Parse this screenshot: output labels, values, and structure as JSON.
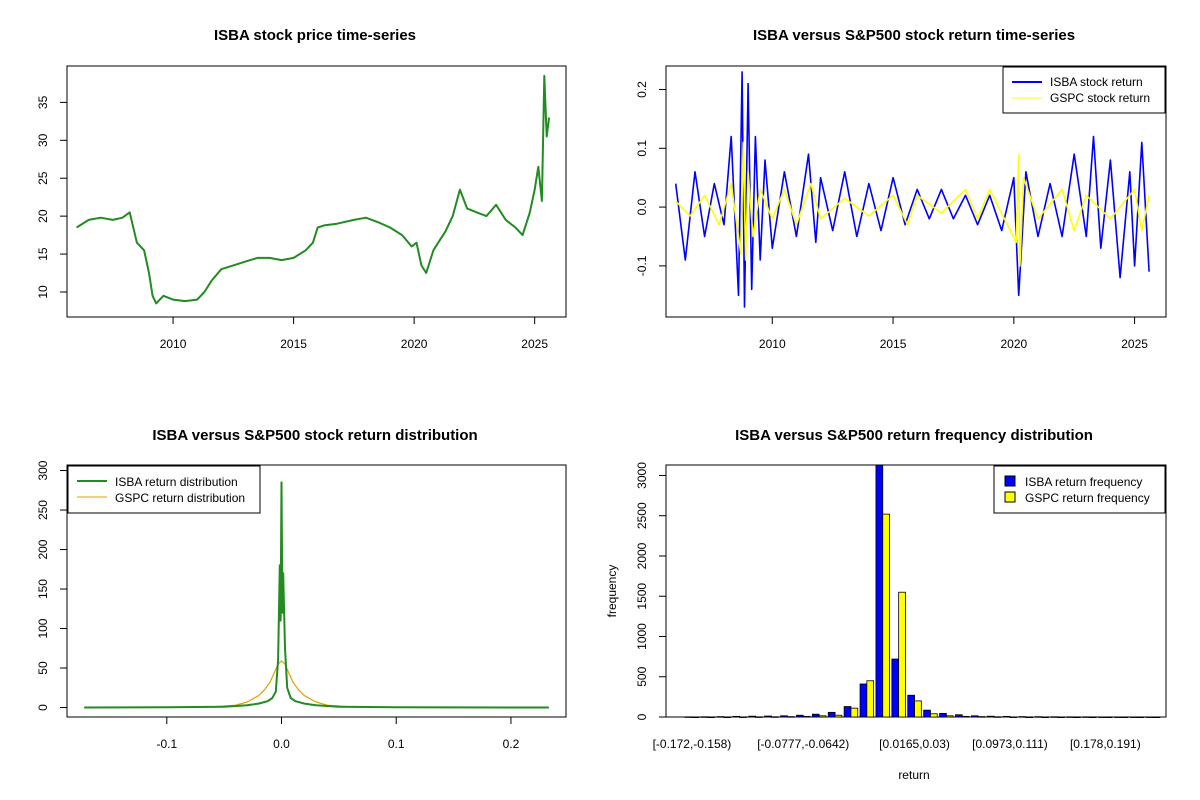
{
  "colors": {
    "isba": "#0000ff",
    "gspc": "#ffff00",
    "price": "#228b22",
    "gspc_density": "#e1a100",
    "frame": "#000000"
  },
  "chart_data": [
    {
      "id": "price",
      "type": "line",
      "title": "ISBA stock price time-series",
      "xlabel": "",
      "ylabel": "",
      "xlim": [
        2005.6,
        2026.3
      ],
      "ylim": [
        6.7,
        39.8
      ],
      "xticks": [
        "2010",
        "2015",
        "2020",
        "2025"
      ],
      "yticks": [
        "10",
        "15",
        "20",
        "25",
        "30",
        "35"
      ],
      "series": [
        {
          "name": "ISBA price",
          "x": [
            2006.0,
            2006.5,
            2007.0,
            2007.5,
            2007.9,
            2008.2,
            2008.5,
            2008.8,
            2009.0,
            2009.15,
            2009.3,
            2009.6,
            2010.0,
            2010.5,
            2011.0,
            2011.3,
            2011.6,
            2012.0,
            2012.5,
            2013.0,
            2013.5,
            2014.0,
            2014.5,
            2015.0,
            2015.5,
            2015.8,
            2016.0,
            2016.3,
            2016.8,
            2017.5,
            2018.0,
            2018.5,
            2019.0,
            2019.5,
            2019.9,
            2020.1,
            2020.3,
            2020.5,
            2020.8,
            2021.0,
            2021.3,
            2021.6,
            2021.9,
            2022.2,
            2022.6,
            2023.0,
            2023.4,
            2023.8,
            2024.2,
            2024.5,
            2024.8,
            2025.0,
            2025.15,
            2025.3,
            2025.4,
            2025.5,
            2025.6
          ],
          "y": [
            18.5,
            19.5,
            19.8,
            19.5,
            19.8,
            20.5,
            16.5,
            15.5,
            12.5,
            9.5,
            8.5,
            9.5,
            9.0,
            8.8,
            9.0,
            10.0,
            11.5,
            13.0,
            13.5,
            14.0,
            14.5,
            14.5,
            14.2,
            14.5,
            15.5,
            16.5,
            18.5,
            18.8,
            19.0,
            19.5,
            19.8,
            19.2,
            18.5,
            17.5,
            16.0,
            16.5,
            13.5,
            12.5,
            15.5,
            16.5,
            18.0,
            20.0,
            23.5,
            21.0,
            20.5,
            20.0,
            21.5,
            19.5,
            18.5,
            17.5,
            20.5,
            23.5,
            26.5,
            22.0,
            38.5,
            30.5,
            33.0
          ]
        }
      ]
    },
    {
      "id": "returns",
      "type": "line",
      "title": "ISBA versus S&P500 stock return time-series",
      "xlabel": "",
      "ylabel": "",
      "xlim": [
        2005.6,
        2026.3
      ],
      "ylim": [
        -0.187,
        0.24
      ],
      "xticks": [
        "2010",
        "2015",
        "2020",
        "2025"
      ],
      "yticks": [
        "-0.1",
        "0.0",
        "0.1",
        "0.2"
      ],
      "legend": {
        "position": "top-right",
        "entries": [
          "ISBA stock return",
          "GSPC stock return"
        ]
      },
      "series": [
        {
          "name": "ISBA stock return",
          "x": [
            2006.0,
            2006.4,
            2006.8,
            2007.2,
            2007.6,
            2008.0,
            2008.3,
            2008.6,
            2008.75,
            2008.85,
            2009.0,
            2009.15,
            2009.3,
            2009.5,
            2009.7,
            2010.0,
            2010.5,
            2011.0,
            2011.5,
            2011.8,
            2012.0,
            2012.5,
            2013.0,
            2013.5,
            2014.0,
            2014.5,
            2015.0,
            2015.5,
            2016.0,
            2016.5,
            2017.0,
            2017.5,
            2018.0,
            2018.5,
            2019.0,
            2019.5,
            2020.0,
            2020.2,
            2020.5,
            2021.0,
            2021.5,
            2022.0,
            2022.5,
            2023.0,
            2023.3,
            2023.6,
            2024.0,
            2024.4,
            2024.8,
            2025.0,
            2025.3,
            2025.6
          ],
          "y": [
            0.04,
            -0.09,
            0.06,
            -0.05,
            0.04,
            -0.03,
            0.12,
            -0.15,
            0.23,
            -0.17,
            0.21,
            -0.14,
            0.12,
            -0.09,
            0.08,
            -0.07,
            0.06,
            -0.05,
            0.09,
            -0.06,
            0.05,
            -0.04,
            0.06,
            -0.05,
            0.04,
            -0.04,
            0.05,
            -0.03,
            0.03,
            -0.02,
            0.03,
            -0.02,
            0.02,
            -0.03,
            0.02,
            -0.04,
            0.05,
            -0.15,
            0.06,
            -0.05,
            0.04,
            -0.05,
            0.09,
            -0.05,
            0.12,
            -0.07,
            0.08,
            -0.12,
            0.06,
            -0.1,
            0.11,
            -0.11
          ]
        },
        {
          "name": "GSPC stock return",
          "x": [
            2006.0,
            2006.6,
            2007.2,
            2007.8,
            2008.3,
            2008.7,
            2008.8,
            2008.9,
            2009.0,
            2009.2,
            2009.5,
            2010.0,
            2010.5,
            2011.0,
            2011.6,
            2012.0,
            2013.0,
            2014.0,
            2015.0,
            2015.6,
            2016.0,
            2017.0,
            2018.0,
            2018.5,
            2019.0,
            2020.1,
            2020.2,
            2020.25,
            2020.4,
            2021.0,
            2022.0,
            2022.5,
            2023.0,
            2024.0,
            2025.0,
            2025.3,
            2025.6
          ],
          "y": [
            0.01,
            -0.015,
            0.02,
            -0.03,
            0.04,
            -0.08,
            0.11,
            -0.09,
            0.06,
            -0.05,
            0.03,
            -0.02,
            0.03,
            -0.03,
            0.04,
            -0.02,
            0.015,
            -0.015,
            0.02,
            -0.03,
            0.02,
            -0.01,
            0.03,
            -0.02,
            0.03,
            -0.06,
            0.09,
            -0.1,
            0.05,
            -0.02,
            0.03,
            -0.04,
            0.02,
            -0.02,
            0.03,
            -0.04,
            0.02
          ]
        }
      ]
    },
    {
      "id": "density",
      "type": "line",
      "title": "ISBA versus S&P500 stock return distribution",
      "xlabel": "",
      "ylabel": "",
      "xlim": [
        -0.187,
        0.248
      ],
      "ylim": [
        -12,
        307
      ],
      "xticks": [
        "-0.1",
        "0.0",
        "0.1",
        "0.2"
      ],
      "yticks": [
        "0",
        "50",
        "100",
        "150",
        "200",
        "250",
        "300"
      ],
      "legend": {
        "position": "top-left",
        "entries": [
          "ISBA return distribution",
          "GSPC return distribution"
        ]
      },
      "series": [
        {
          "name": "ISBA return distribution",
          "x": [
            -0.172,
            -0.1,
            -0.05,
            -0.03,
            -0.02,
            -0.012,
            -0.008,
            -0.005,
            -0.003,
            -0.0015,
            -0.0008,
            0.0,
            0.0008,
            0.0015,
            0.003,
            0.005,
            0.008,
            0.012,
            0.02,
            0.03,
            0.05,
            0.1,
            0.233
          ],
          "y": [
            0,
            0.3,
            1,
            3,
            5,
            8,
            12,
            20,
            60,
            180,
            110,
            285,
            120,
            170,
            75,
            25,
            12,
            8,
            5,
            3,
            1,
            0.3,
            0
          ]
        },
        {
          "name": "GSPC return distribution",
          "x": [
            -0.172,
            -0.1,
            -0.06,
            -0.04,
            -0.03,
            -0.02,
            -0.015,
            -0.01,
            -0.006,
            -0.003,
            0.0,
            0.003,
            0.006,
            0.01,
            0.015,
            0.02,
            0.03,
            0.04,
            0.06,
            0.1,
            0.233
          ],
          "y": [
            0,
            0.2,
            1,
            3,
            7,
            15,
            22,
            32,
            45,
            55,
            59,
            55,
            45,
            32,
            22,
            15,
            7,
            3,
            1,
            0.2,
            0
          ]
        }
      ]
    },
    {
      "id": "freq",
      "type": "bar",
      "title": "ISBA versus S&P500 return frequency distribution",
      "xlabel": "return",
      "ylabel": "frequency",
      "ylim": [
        0,
        3130
      ],
      "yticks": [
        "0",
        "500",
        "1000",
        "1500",
        "2000",
        "2500",
        "3000"
      ],
      "xtick_labels": [
        "[-0.172,-0.158)",
        "[-0.0777,-0.0642)",
        "[0.0165,0.03)",
        "[0.0973,0.111)",
        "[0.178,0.191)"
      ],
      "xtick_bins": [
        0,
        7,
        14,
        20,
        26
      ],
      "nbins": 30,
      "legend": {
        "position": "top-right",
        "entries": [
          "ISBA return frequency",
          "GSPC return frequency"
        ]
      },
      "series": [
        {
          "name": "ISBA return frequency",
          "values": [
            2,
            3,
            5,
            8,
            10,
            12,
            15,
            22,
            35,
            58,
            130,
            410,
            3130,
            720,
            270,
            85,
            45,
            28,
            15,
            10,
            8,
            5,
            4,
            3,
            2,
            2,
            1,
            1,
            1,
            1
          ]
        },
        {
          "name": "GSPC return frequency",
          "values": [
            0,
            0,
            0,
            1,
            2,
            3,
            5,
            8,
            15,
            22,
            110,
            450,
            2520,
            1550,
            200,
            40,
            15,
            8,
            5,
            3,
            1,
            0,
            0,
            0,
            0,
            0,
            0,
            0,
            0,
            0
          ]
        }
      ]
    }
  ]
}
